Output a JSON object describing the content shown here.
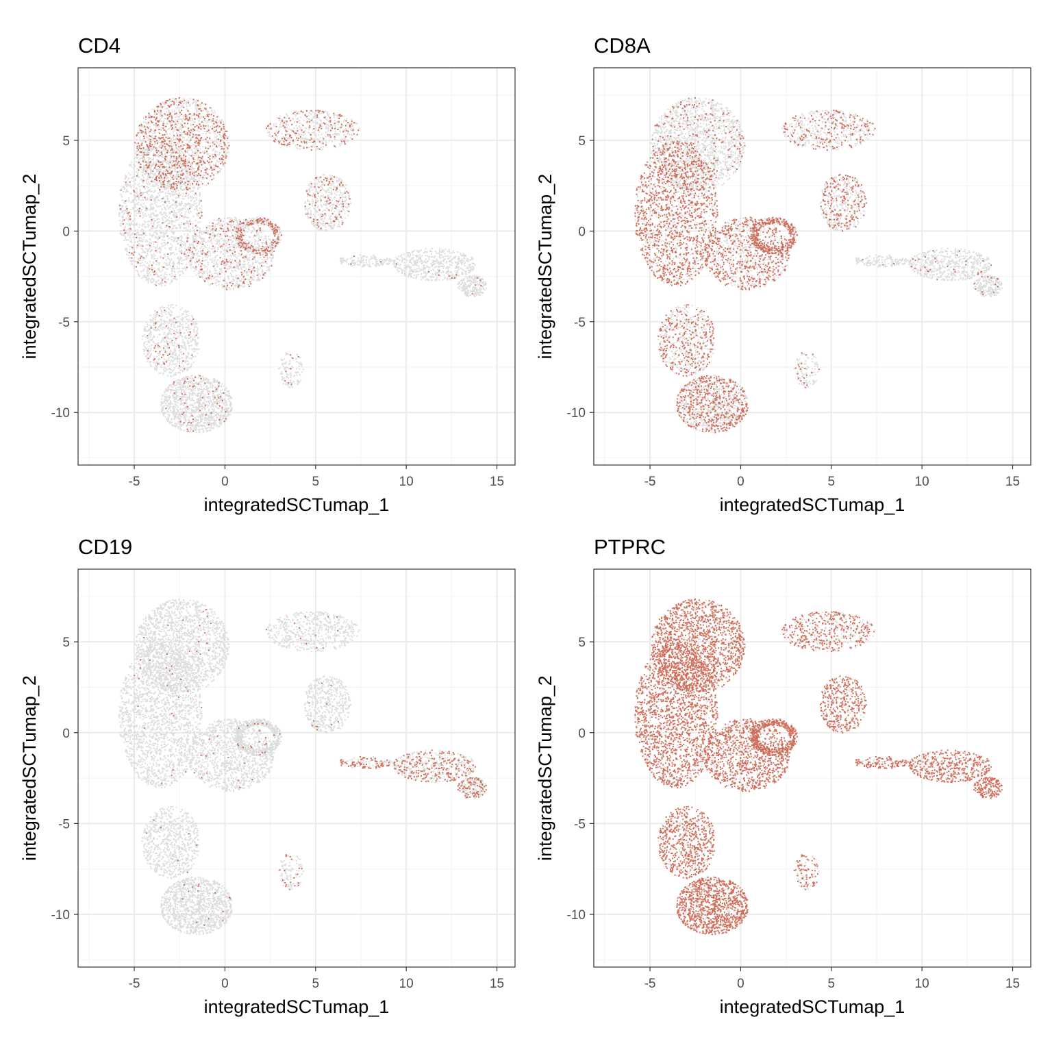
{
  "figure": {
    "background": "#ffffff",
    "low_color": "#dcdcdc",
    "high_color": "#c8553d"
  },
  "chart_data": [
    {
      "type": "scatter",
      "title": "CD4",
      "xlabel": "integratedSCTumap_1",
      "ylabel": "integratedSCTumap_2",
      "xlim": [
        -8.1,
        16.0
      ],
      "ylim": [
        -12.9,
        9.0
      ],
      "xticks": [
        -5,
        0,
        5,
        10,
        15
      ],
      "yticks": [
        5,
        0,
        -5,
        -10
      ],
      "xtick_labels": [
        "-5",
        "0",
        "5",
        "10",
        "15"
      ],
      "ytick_labels": [
        "5",
        "0",
        "-5",
        "-10"
      ],
      "grid": true,
      "legend": "none",
      "expression_level_by_region": {
        "upper_left_lobe": 0.35,
        "left_column": 0.08,
        "center_band": 0.15,
        "inner_ring": 0.3,
        "lower_lobe": 0.06,
        "top_right_branch": 0.25,
        "mid_right_blob": 0.22,
        "right_tail": 0.02,
        "lower_spur": 0.05
      }
    },
    {
      "type": "scatter",
      "title": "CD8A",
      "xlabel": "integratedSCTumap_1",
      "ylabel": "integratedSCTumap_2",
      "xlim": [
        -8.1,
        16.0
      ],
      "ylim": [
        -12.9,
        9.0
      ],
      "xticks": [
        -5,
        0,
        5,
        10,
        15
      ],
      "yticks": [
        5,
        0,
        -5,
        -10
      ],
      "xtick_labels": [
        "-5",
        "0",
        "5",
        "10",
        "15"
      ],
      "ytick_labels": [
        "5",
        "0",
        "-5",
        "-10"
      ],
      "grid": true,
      "legend": "none",
      "expression_level_by_region": {
        "upper_left_lobe": 0.12,
        "left_column": 0.6,
        "center_band": 0.5,
        "inner_ring": 0.55,
        "lower_lobe": 0.4,
        "top_right_branch": 0.3,
        "mid_right_blob": 0.35,
        "right_tail": 0.04,
        "lower_spur": 0.1
      }
    },
    {
      "type": "scatter",
      "title": "CD19",
      "xlabel": "integratedSCTumap_1",
      "ylabel": "integratedSCTumap_2",
      "xlim": [
        -8.1,
        16.0
      ],
      "ylim": [
        -12.9,
        9.0
      ],
      "xticks": [
        -5,
        0,
        5,
        10,
        15
      ],
      "yticks": [
        5,
        0,
        -5,
        -10
      ],
      "xtick_labels": [
        "-5",
        "0",
        "5",
        "10",
        "15"
      ],
      "ytick_labels": [
        "5",
        "0",
        "-5",
        "-10"
      ],
      "grid": true,
      "legend": "none",
      "expression_level_by_region": {
        "upper_left_lobe": 0.01,
        "left_column": 0.01,
        "center_band": 0.02,
        "inner_ring": 0.02,
        "lower_lobe": 0.01,
        "top_right_branch": 0.02,
        "mid_right_blob": 0.02,
        "right_tail": 0.4,
        "lower_spur": 0.15
      }
    },
    {
      "type": "scatter",
      "title": "PTPRC",
      "xlabel": "integratedSCTumap_1",
      "ylabel": "integratedSCTumap_2",
      "xlim": [
        -8.1,
        16.0
      ],
      "ylim": [
        -12.9,
        9.0
      ],
      "xticks": [
        -5,
        0,
        5,
        10,
        15
      ],
      "yticks": [
        5,
        0,
        -5,
        -10
      ],
      "xtick_labels": [
        "-5",
        "0",
        "5",
        "10",
        "15"
      ],
      "ytick_labels": [
        "5",
        "0",
        "-5",
        "-10"
      ],
      "grid": true,
      "legend": "none",
      "expression_level_by_region": {
        "upper_left_lobe": 0.85,
        "left_column": 0.85,
        "center_band": 0.8,
        "inner_ring": 0.8,
        "lower_lobe": 0.8,
        "top_right_branch": 0.6,
        "mid_right_blob": 0.7,
        "right_tail": 0.75,
        "lower_spur": 0.6
      }
    }
  ]
}
